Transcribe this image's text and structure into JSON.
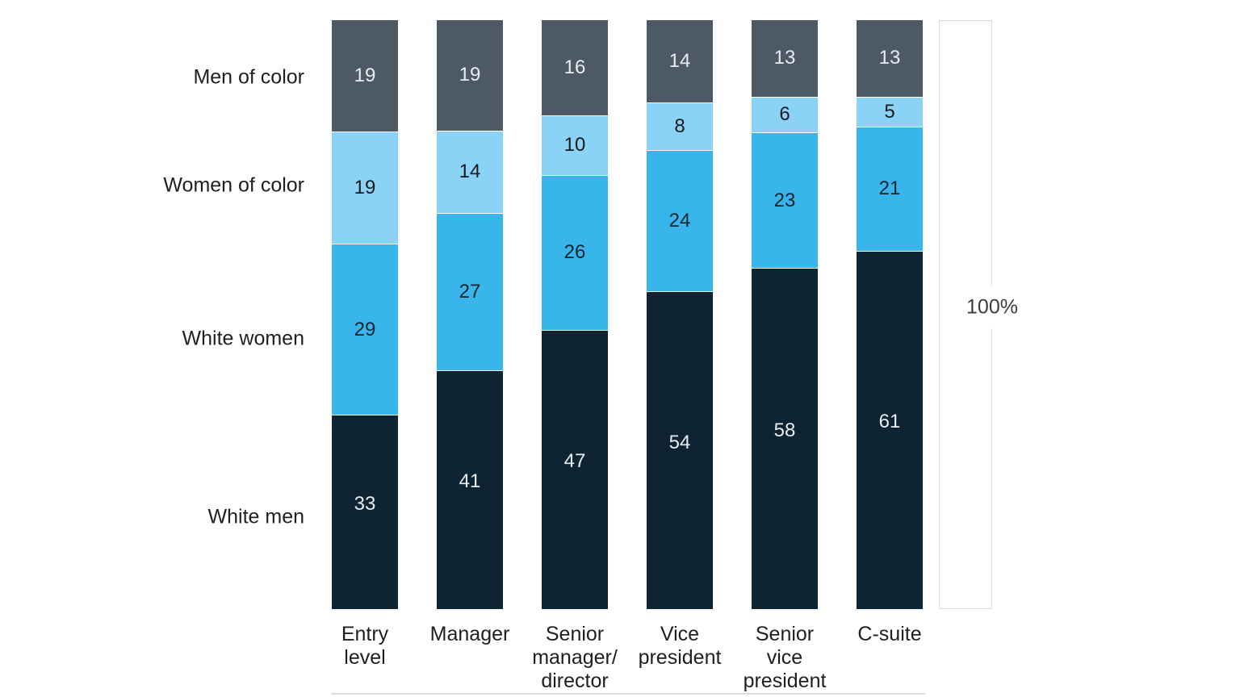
{
  "chart_data": {
    "type": "bar",
    "stacked": true,
    "orientation": "vertical",
    "unit": "percent",
    "value_labels": "inside",
    "legend_position": "left",
    "axis_max": 100,
    "right_axis_label": "100%",
    "categories": [
      {
        "label": "Entry level",
        "lines": [
          "Entry",
          "level"
        ]
      },
      {
        "label": "Manager",
        "lines": [
          "Manager"
        ]
      },
      {
        "label": "Senior manager/director",
        "lines": [
          "Senior",
          "manager/",
          "director"
        ]
      },
      {
        "label": "Vice president",
        "lines": [
          "Vice",
          "president"
        ]
      },
      {
        "label": "Senior vice president",
        "lines": [
          "Senior",
          "vice",
          "president"
        ]
      },
      {
        "label": "C-suite",
        "lines": [
          "C-suite"
        ]
      }
    ],
    "series": [
      {
        "name": "Men of color",
        "color": "#4d5a66",
        "label_color": "#e7ecef",
        "values": [
          19,
          19,
          16,
          14,
          13,
          13
        ]
      },
      {
        "name": "Women of color",
        "color": "#8ad3f7",
        "label_color": "#1a1a1a",
        "values": [
          19,
          14,
          10,
          8,
          6,
          5
        ]
      },
      {
        "name": "White women",
        "color": "#38b6ec",
        "label_color": "#14242e",
        "values": [
          29,
          27,
          26,
          24,
          23,
          21
        ]
      },
      {
        "name": "White men",
        "color": "#0e2433",
        "label_color": "#e7ecef",
        "values": [
          33,
          41,
          47,
          54,
          58,
          61
        ]
      }
    ],
    "frame": {
      "background": "#ffffff",
      "reference_outline_color": "#dcdcdc",
      "baseline_color": "#dcdcdc",
      "label_text_color": "#1f1f1f",
      "axis_label_text_color": "#3c3c3c"
    }
  }
}
